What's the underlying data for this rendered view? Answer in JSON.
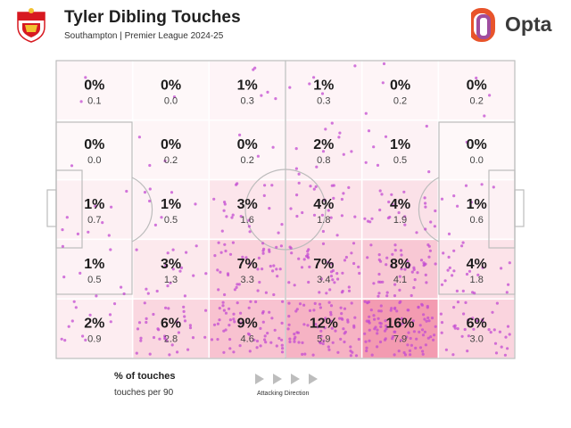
{
  "header": {
    "title": "Tyler Dibling Touches",
    "subtitle": "Southampton | Premier League 2024-25",
    "brand": "Opta",
    "brand_accent": "#e8542b",
    "brand_accent2": "#a04d9e"
  },
  "legend": {
    "pct_label": "% of touches",
    "p90_label": "touches per 90",
    "direction_label": "Attacking Direction"
  },
  "colors": {
    "heat": "#e9476f",
    "dot": "#c34bd1",
    "line": "#bcbcbc"
  },
  "chart_data": {
    "type": "heatmap",
    "title": "Tyler Dibling Touches",
    "subtitle": "Southampton | Premier League 2024-25",
    "columns": 6,
    "rows": 5,
    "cells": [
      [
        {
          "pct": "0%",
          "p90": "0.1"
        },
        {
          "pct": "0%",
          "p90": "0.0"
        },
        {
          "pct": "1%",
          "p90": "0.3"
        },
        {
          "pct": "1%",
          "p90": "0.3"
        },
        {
          "pct": "0%",
          "p90": "0.2"
        },
        {
          "pct": "0%",
          "p90": "0.2"
        }
      ],
      [
        {
          "pct": "0%",
          "p90": "0.0"
        },
        {
          "pct": "0%",
          "p90": "0.2"
        },
        {
          "pct": "0%",
          "p90": "0.2"
        },
        {
          "pct": "2%",
          "p90": "0.8"
        },
        {
          "pct": "1%",
          "p90": "0.5"
        },
        {
          "pct": "0%",
          "p90": "0.0"
        }
      ],
      [
        {
          "pct": "1%",
          "p90": "0.7"
        },
        {
          "pct": "1%",
          "p90": "0.5"
        },
        {
          "pct": "3%",
          "p90": "1.6"
        },
        {
          "pct": "4%",
          "p90": "1.8"
        },
        {
          "pct": "4%",
          "p90": "1.9"
        },
        {
          "pct": "1%",
          "p90": "0.6"
        }
      ],
      [
        {
          "pct": "1%",
          "p90": "0.5"
        },
        {
          "pct": "3%",
          "p90": "1.3"
        },
        {
          "pct": "7%",
          "p90": "3.3"
        },
        {
          "pct": "7%",
          "p90": "3.4"
        },
        {
          "pct": "8%",
          "p90": "4.1"
        },
        {
          "pct": "4%",
          "p90": "1.8"
        }
      ],
      [
        {
          "pct": "2%",
          "p90": "0.9"
        },
        {
          "pct": "6%",
          "p90": "2.8"
        },
        {
          "pct": "9%",
          "p90": "4.6"
        },
        {
          "pct": "12%",
          "p90": "5.9"
        },
        {
          "pct": "16%",
          "p90": "7.9"
        },
        {
          "pct": "6%",
          "p90": "3.0"
        }
      ]
    ]
  }
}
